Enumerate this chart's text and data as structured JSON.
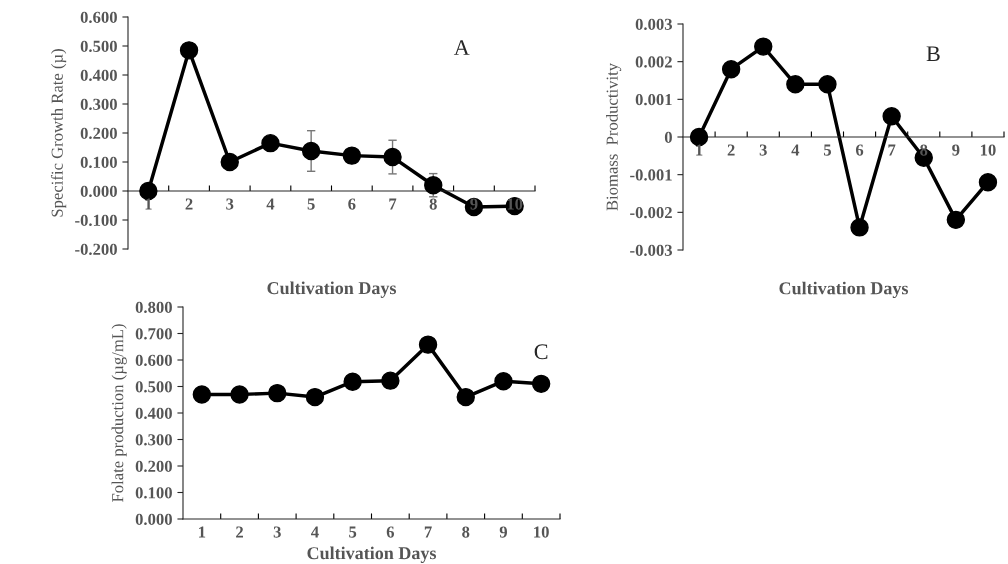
{
  "chart_data": [
    {
      "type": "line",
      "xlabel": "Cultivation Days",
      "ylabel": "Specific Growth Rate (µ)",
      "categories": [
        "1",
        "2",
        "3",
        "4",
        "5",
        "6",
        "7",
        "8",
        "9",
        "10"
      ],
      "values": [
        0,
        0.485,
        0.1,
        0.165,
        0.138,
        0.122,
        0.117,
        0.02,
        -0.055,
        -0.052
      ],
      "errors": [
        null,
        null,
        null,
        null,
        0.07,
        null,
        0.058,
        0.04,
        0.025,
        null
      ],
      "color": "#000000",
      "marker": "circle",
      "line_style": "solid",
      "ylim": [
        -0.2,
        0.6
      ],
      "yticks": [
        {
          "value": -0.2,
          "label": "-0.200"
        },
        {
          "value": -0.1,
          "label": "-0.100"
        },
        {
          "value": 0,
          "label": "0.000"
        },
        {
          "value": 0.1,
          "label": "0.100"
        },
        {
          "value": 0.2,
          "label": "0.200"
        },
        {
          "value": 0.3,
          "label": "0.300"
        },
        {
          "value": 0.4,
          "label": "0.400"
        },
        {
          "value": 0.5,
          "label": "0.500"
        },
        {
          "value": 0.6,
          "label": "0.600"
        }
      ],
      "annotations": [
        "A"
      ],
      "grid": false,
      "legend": false
    },
    {
      "type": "line",
      "xlabel": "Cultivation Days",
      "ylabel": "Biomass  Productivity",
      "categories": [
        "1",
        "2",
        "3",
        "4",
        "5",
        "6",
        "7",
        "8",
        "9",
        "10"
      ],
      "values": [
        0,
        0.0018,
        0.0024,
        0.0014,
        0.0014,
        -0.0024,
        0.00055,
        -0.00055,
        -0.0022,
        -0.0012
      ],
      "color": "#000000",
      "marker": "circle",
      "line_style": "solid",
      "ylim": [
        -0.003,
        0.003
      ],
      "yticks": [
        {
          "value": -0.003,
          "label": "-0.003"
        },
        {
          "value": -0.002,
          "label": "-0.002"
        },
        {
          "value": -0.001,
          "label": "-0.001"
        },
        0,
        {
          "value": 0.001,
          "label": "0.001"
        },
        {
          "value": 0.002,
          "label": "0.002"
        },
        {
          "value": 0.003,
          "label": "0.003"
        }
      ],
      "annotations": [
        "B"
      ],
      "grid": false,
      "legend": false
    },
    {
      "type": "line",
      "xlabel": "Cultivation Days",
      "ylabel": "Folate production (µg/mL)",
      "categories": [
        "1",
        "2",
        "3",
        "4",
        "5",
        "6",
        "7",
        "8",
        "9",
        "10"
      ],
      "values": [
        0.47,
        0.47,
        0.475,
        0.46,
        0.518,
        0.522,
        0.658,
        0.46,
        0.52,
        0.51
      ],
      "color": "#000000",
      "marker": "circle",
      "line_style": "solid",
      "ylim": [
        0,
        0.8
      ],
      "yticks": [
        {
          "value": 0,
          "label": "0.000"
        },
        {
          "value": 0.1,
          "label": "0.100"
        },
        {
          "value": 0.2,
          "label": "0.200"
        },
        {
          "value": 0.3,
          "label": "0.300"
        },
        {
          "value": 0.4,
          "label": "0.400"
        },
        {
          "value": 0.5,
          "label": "0.500"
        },
        {
          "value": 0.6,
          "label": "0.600"
        },
        {
          "value": 0.7,
          "label": "0.700"
        },
        {
          "value": 0.8,
          "label": "0.800"
        }
      ],
      "annotations": [
        "C"
      ],
      "grid": false,
      "legend": false
    }
  ]
}
